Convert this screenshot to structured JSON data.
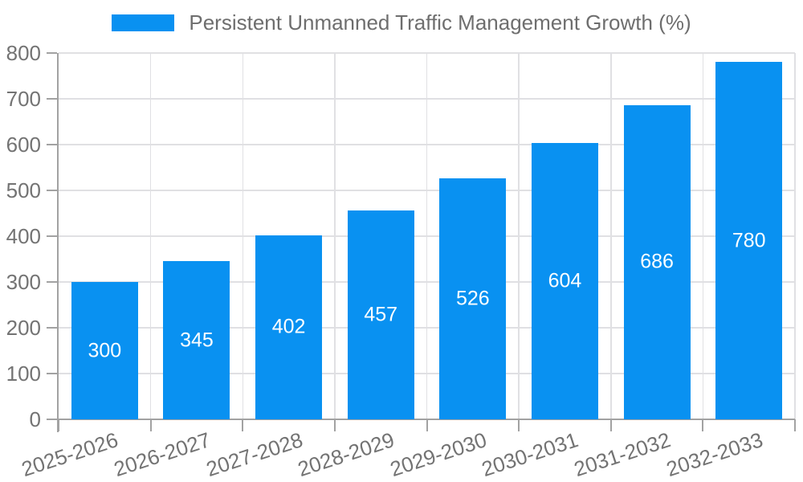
{
  "chart_data": {
    "type": "bar",
    "title": "",
    "legend_label": "Persistent Unmanned Traffic Management Growth (%)",
    "legend_position": "top-center",
    "categories": [
      "2025-2026",
      "2026-2027",
      "2027-2028",
      "2028-2029",
      "2029-2030",
      "2030-2031",
      "2031-2032",
      "2032-2033"
    ],
    "values": [
      300,
      345,
      402,
      457,
      526,
      604,
      686,
      780
    ],
    "xlabel": "",
    "ylabel": "",
    "ylim": [
      0,
      800
    ],
    "ytick_step": 100,
    "grid": true,
    "value_labels": "inside-center",
    "x_label_rotation_deg": -18,
    "colors": {
      "bar": "#0991f1",
      "value_label": "#ffffff",
      "grid": "#e0e0e3",
      "axis": "#a2a2a2",
      "tick_text": "#737373",
      "legend_text": "#6e6e6e",
      "background": "#ffffff"
    }
  }
}
